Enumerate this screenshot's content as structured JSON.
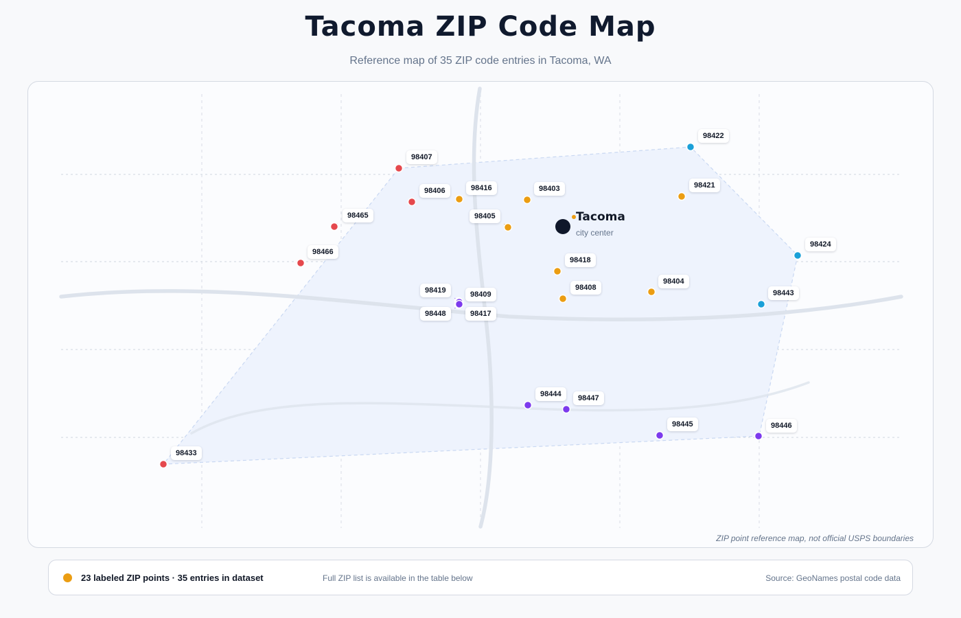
{
  "header": {
    "title": "Tacoma ZIP Code Map",
    "subtitle": "Reference map of 35 ZIP code entries in Tacoma, WA"
  },
  "map": {
    "city": {
      "name": "Tacoma",
      "sublabel": "city center"
    },
    "note": "ZIP point reference map, not official USPS boundaries",
    "colors": {
      "red": "#e5484d",
      "orange": "#eb9d12",
      "blue": "#1aa0d8",
      "purple": "#7c3aed",
      "city": "#0f172a",
      "area_fill": "#eef3fd",
      "area_stroke": "#c9d8f2",
      "road": "#dde3ec",
      "grid": "#d8dde6"
    },
    "zip_points": [
      {
        "zip": "98407",
        "color": "red"
      },
      {
        "zip": "98406",
        "color": "red"
      },
      {
        "zip": "98465",
        "color": "red"
      },
      {
        "zip": "98466",
        "color": "red"
      },
      {
        "zip": "98433",
        "color": "red"
      },
      {
        "zip": "98416",
        "color": "orange"
      },
      {
        "zip": "98403",
        "color": "orange"
      },
      {
        "zip": "98405",
        "color": "orange"
      },
      {
        "zip": "98421",
        "color": "orange"
      },
      {
        "zip": "98418",
        "color": "orange"
      },
      {
        "zip": "98408",
        "color": "orange"
      },
      {
        "zip": "98404",
        "color": "orange"
      },
      {
        "zip": "98422",
        "color": "blue"
      },
      {
        "zip": "98424",
        "color": "blue"
      },
      {
        "zip": "98443",
        "color": "blue"
      },
      {
        "zip": "98419",
        "color": "purple"
      },
      {
        "zip": "98409",
        "color": "purple"
      },
      {
        "zip": "98448",
        "color": "purple"
      },
      {
        "zip": "98417",
        "color": "purple"
      },
      {
        "zip": "98444",
        "color": "purple"
      },
      {
        "zip": "98447",
        "color": "purple"
      },
      {
        "zip": "98445",
        "color": "purple"
      },
      {
        "zip": "98446",
        "color": "purple"
      }
    ]
  },
  "footer": {
    "legend_color": "#eb9d12",
    "legend": "23 labeled ZIP points · 35 entries in dataset",
    "hint": "Full ZIP list is available in the table below",
    "source": "Source: GeoNames postal code data"
  }
}
